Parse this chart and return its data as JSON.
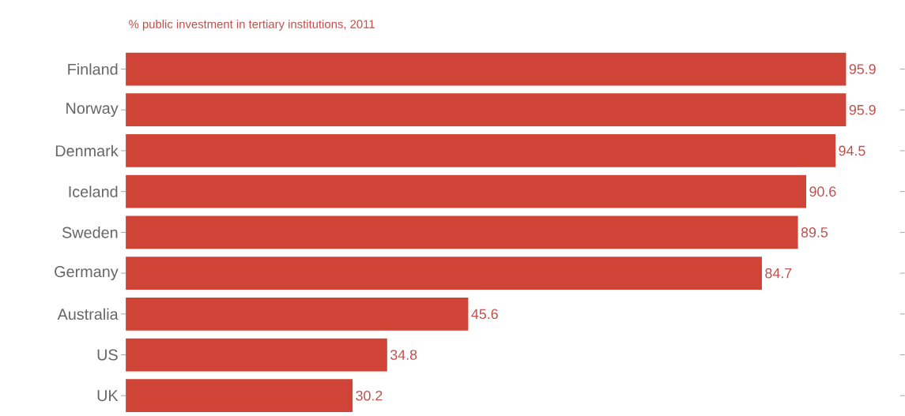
{
  "chart_data": {
    "type": "bar",
    "orientation": "horizontal",
    "subtitle": "% public investment in tertiary institutions, 2011",
    "categories": [
      "Finland",
      "Norway",
      "Denmark",
      "Iceland",
      "Sweden",
      "Germany",
      "Australia",
      "US",
      "UK"
    ],
    "values": [
      95.9,
      95.9,
      94.5,
      90.6,
      89.5,
      84.7,
      45.6,
      34.8,
      30.2
    ],
    "color": "#d04437",
    "data_labels": true
  }
}
